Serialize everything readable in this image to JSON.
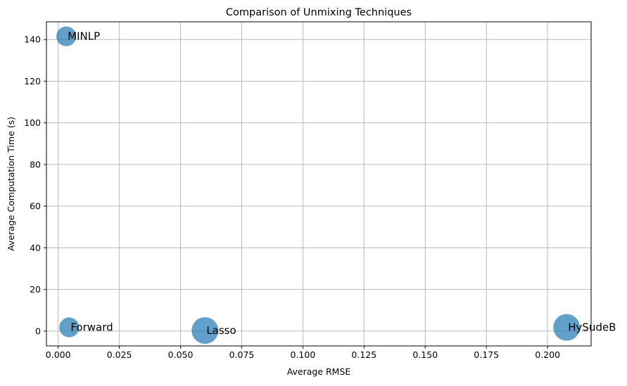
{
  "chart_data": {
    "type": "scatter",
    "title": "Comparison of Unmixing Techniques",
    "xlabel": "Average RMSE",
    "ylabel": "Average Computation Time (s)",
    "xlim": [
      -0.0048,
      0.2178
    ],
    "ylim": [
      -7.1,
      148.5
    ],
    "xticks": [
      0.0,
      0.025,
      0.05,
      0.075,
      0.1,
      0.125,
      0.15,
      0.175,
      0.2
    ],
    "xtick_labels": [
      "0.000",
      "0.025",
      "0.050",
      "0.075",
      "0.100",
      "0.125",
      "0.150",
      "0.175",
      "0.200"
    ],
    "yticks": [
      0,
      20,
      40,
      60,
      80,
      100,
      120,
      140
    ],
    "ytick_labels": [
      "0",
      "20",
      "40",
      "60",
      "80",
      "100",
      "120",
      "140"
    ],
    "grid": true,
    "color": "#1f77b4",
    "points": [
      {
        "label": "MINLP",
        "x": 0.0033,
        "y": 141.5,
        "size": 0.55
      },
      {
        "label": "Forward",
        "x": 0.0045,
        "y": 1.8,
        "size": 0.55
      },
      {
        "label": "Lasso",
        "x": 0.06,
        "y": 0.3,
        "size": 1.0
      },
      {
        "label": "HySudeB",
        "x": 0.2078,
        "y": 1.8,
        "size": 1.0
      }
    ]
  }
}
